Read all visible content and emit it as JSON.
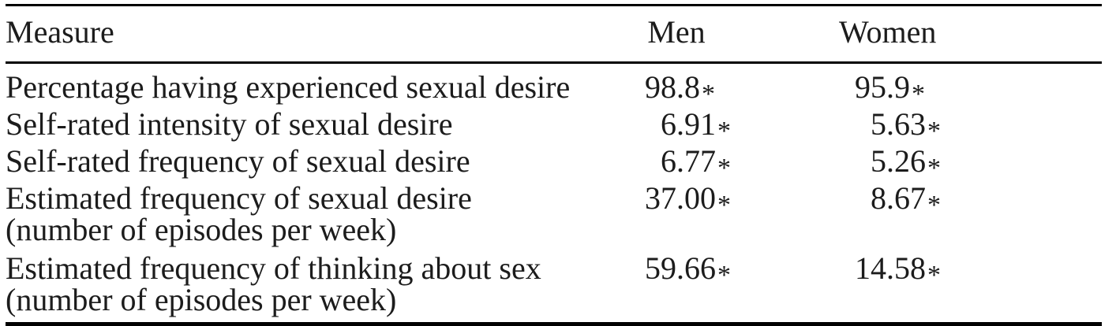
{
  "colors": {
    "background": "#ffffff",
    "text": "#1c1c1c",
    "rule": "#000000"
  },
  "table": {
    "header": {
      "measure": "Measure",
      "men": "Men",
      "women": "Women"
    },
    "rows": [
      {
        "measure": "Percentage having experienced sexual desire",
        "note": "",
        "men": {
          "value": "98.8",
          "marker": "*"
        },
        "women": {
          "value": "95.9",
          "marker": "*"
        }
      },
      {
        "measure": "Self-rated intensity of sexual desire",
        "note": "",
        "men": {
          "value": "6.91",
          "marker": "*"
        },
        "women": {
          "value": "5.63",
          "marker": "*"
        }
      },
      {
        "measure": "Self-rated frequency of sexual desire",
        "note": "",
        "men": {
          "value": "6.77",
          "marker": "*"
        },
        "women": {
          "value": "5.26",
          "marker": "*"
        }
      },
      {
        "measure": "Estimated frequency of sexual desire",
        "note": "(number of episodes per week)",
        "men": {
          "value": "37.00",
          "marker": "*"
        },
        "women": {
          "value": "8.67",
          "marker": "*"
        }
      },
      {
        "measure": "Estimated frequency of thinking about sex",
        "note": "(number of episodes per week)",
        "men": {
          "value": "59.66",
          "marker": "*"
        },
        "women": {
          "value": "14.58",
          "marker": "*"
        }
      }
    ]
  }
}
